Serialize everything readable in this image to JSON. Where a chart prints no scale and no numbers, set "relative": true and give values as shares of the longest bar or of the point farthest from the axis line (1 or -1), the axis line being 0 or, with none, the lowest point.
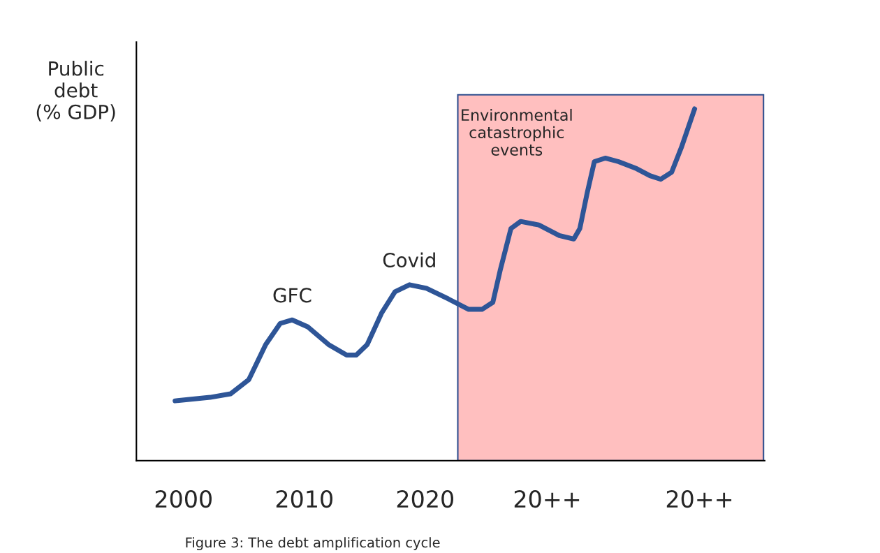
{
  "chart_data": {
    "type": "line",
    "relative": true,
    "ylabel": "Public\ndebt\n(% GDP)",
    "x": [
      1999.3,
      2002.2,
      2003.9,
      2005.4,
      2006.8,
      2008.0,
      2009.0,
      2010.3,
      2012.0,
      2013.5,
      2014.3,
      2015.2,
      2016.4,
      2017.5,
      2018.7,
      2020.1,
      2021.9,
      2023.6,
      2024.7,
      2025.6,
      2026.2,
      2027.1,
      2027.9,
      2029.4,
      2031.1,
      2032.3,
      2032.8,
      2033.4,
      2034.0,
      2034.9,
      2036.0,
      2037.5,
      2038.6,
      2039.5,
      2040.4,
      2041.2,
      2042.3
    ],
    "series": [
      {
        "color": "#2e5597",
        "values": [
          0.17,
          0.18,
          0.19,
          0.23,
          0.33,
          0.39,
          0.4,
          0.38,
          0.33,
          0.3,
          0.3,
          0.33,
          0.42,
          0.48,
          0.5,
          0.49,
          0.46,
          0.43,
          0.43,
          0.45,
          0.54,
          0.66,
          0.68,
          0.67,
          0.64,
          0.63,
          0.66,
          0.76,
          0.85,
          0.86,
          0.85,
          0.83,
          0.81,
          0.8,
          0.82,
          0.89,
          1.0
        ]
      }
    ],
    "xlim": [
      1996.1,
      2048.1
    ],
    "xticks": [
      2000,
      2010,
      2020,
      {
        "value": 2030.1,
        "label": "20++"
      },
      {
        "value": 2042.7,
        "label": "20++"
      }
    ],
    "bands": [
      {
        "axis": "x",
        "from": 2022.7,
        "to": 2048.0,
        "label": "Environmental\ncatastrophic\nevents",
        "color": "#ffbfbf"
      }
    ],
    "annotations": [
      {
        "text": "GFC",
        "x": 2009.0,
        "y": 0.4
      },
      {
        "text": "Covid",
        "x": 2018.7,
        "y": 0.5
      },
      "Figure 3: The debt amplification cycle"
    ],
    "grid": false,
    "legend": false,
    "marker": "none",
    "line_style": "solid"
  }
}
